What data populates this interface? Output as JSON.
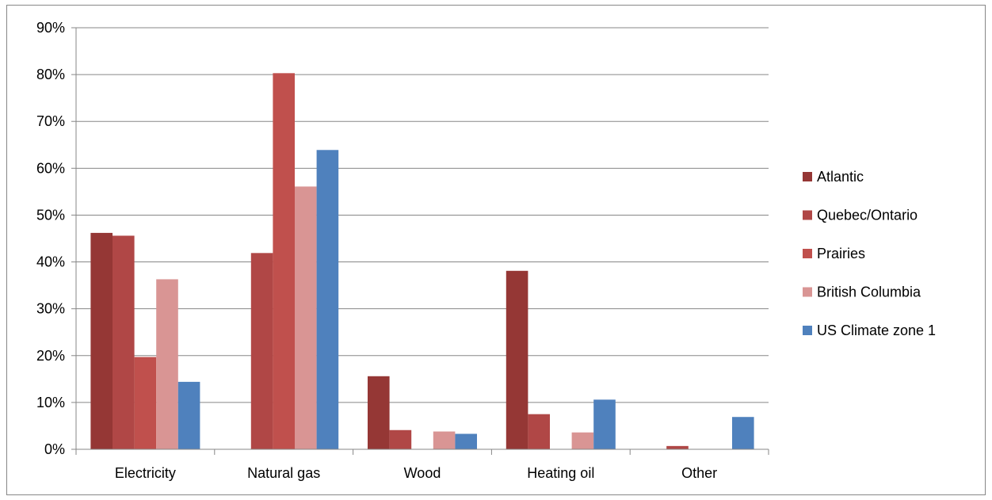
{
  "chart_data": {
    "type": "bar",
    "title": "",
    "xlabel": "",
    "ylabel": "",
    "categories": [
      "Electricity",
      "Natural gas",
      "Wood",
      "Heating oil",
      "Other"
    ],
    "ylim": [
      0,
      90
    ],
    "yticks": [
      0,
      10,
      20,
      30,
      40,
      50,
      60,
      70,
      80,
      90
    ],
    "ytick_labels": [
      "0%",
      "10%",
      "20%",
      "30%",
      "40%",
      "50%",
      "60%",
      "70%",
      "80%",
      "90%"
    ],
    "grid": true,
    "legend_position": "right",
    "series": [
      {
        "name": "Atlantic",
        "color": "#953735",
        "values": [
          46.2,
          0,
          15.6,
          38.1,
          0
        ]
      },
      {
        "name": "Quebec/Ontario",
        "color": "#b04746",
        "values": [
          45.6,
          41.9,
          4.1,
          7.5,
          0.7
        ]
      },
      {
        "name": "Prairies",
        "color": "#c0504d",
        "values": [
          19.7,
          80.3,
          0,
          0,
          0
        ]
      },
      {
        "name": "British Columbia",
        "color": "#d99594",
        "values": [
          36.3,
          56.1,
          3.8,
          3.6,
          0
        ]
      },
      {
        "name": "US Climate zone 1",
        "color": "#4f81bd",
        "values": [
          14.4,
          63.9,
          3.3,
          10.6,
          6.9
        ]
      }
    ]
  }
}
